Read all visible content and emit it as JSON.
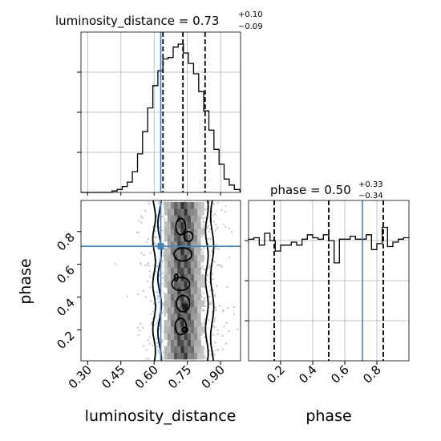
{
  "chart_data": [
    {
      "panel": "luminosity_distance_marginal",
      "type": "histogram",
      "title_param": "luminosity_distance",
      "title_value": "0.73",
      "title_plus": "+0.10",
      "title_minus": "−0.09",
      "xlim": [
        0.27,
        0.99
      ],
      "bins": [
        0.272,
        0.295,
        0.318,
        0.341,
        0.364,
        0.387,
        0.41,
        0.433,
        0.456,
        0.479,
        0.502,
        0.525,
        0.548,
        0.571,
        0.594,
        0.617,
        0.64,
        0.663,
        0.686,
        0.709,
        0.732,
        0.755,
        0.778,
        0.801,
        0.824,
        0.847,
        0.87,
        0.893,
        0.916,
        0.939,
        0.962,
        0.985
      ],
      "heights": [
        0.0,
        0.0,
        0.0,
        0.0,
        0.0,
        0.0,
        0.01,
        0.02,
        0.04,
        0.07,
        0.14,
        0.26,
        0.41,
        0.57,
        0.72,
        0.82,
        0.9,
        0.91,
        0.98,
        1.0,
        0.94,
        0.87,
        0.8,
        0.68,
        0.55,
        0.42,
        0.29,
        0.19,
        0.09,
        0.05,
        0.02
      ],
      "quantiles": [
        0.64,
        0.73,
        0.83
      ],
      "truth": 0.63
    },
    {
      "panel": "joint_2d",
      "type": "scatter-density",
      "xlim": [
        0.27,
        0.99
      ],
      "ylim": [
        0.01,
        0.99
      ],
      "x_ticks": [
        "0.30",
        "0.45",
        "0.60",
        "0.75",
        "0.90"
      ],
      "y_ticks": [
        "0.2",
        "0.4",
        "0.6",
        "0.8"
      ],
      "xlabel": "luminosity_distance",
      "ylabel": "phase",
      "truth": {
        "x": 0.63,
        "y": 0.71
      }
    },
    {
      "panel": "phase_marginal",
      "type": "histogram",
      "title_param": "phase",
      "title_value": "0.50",
      "title_plus": "+0.33",
      "title_minus": "−0.34",
      "xlim": [
        0.0,
        1.0
      ],
      "heights": [
        0.82,
        0.83,
        0.78,
        0.86,
        0.81,
        0.74,
        0.78,
        0.78,
        0.8,
        0.78,
        0.82,
        0.85,
        0.83,
        0.82,
        0.85,
        0.81,
        0.66,
        0.82,
        0.82,
        0.84,
        0.82,
        0.82,
        0.85,
        0.75,
        0.79,
        0.9,
        0.77,
        0.8,
        0.82,
        0.83
      ],
      "quantiles": [
        0.16,
        0.5,
        0.84
      ],
      "truth": 0.71,
      "x_ticks": [
        "0.2",
        "0.4",
        "0.6",
        "0.8"
      ],
      "xlabel": "phase"
    }
  ],
  "colors": {
    "truth": "#4682b4",
    "grid": "#b0b0b0",
    "hist": "#000000",
    "density_dark": "#1a1a1a",
    "scatter": "#c8c8c8"
  }
}
